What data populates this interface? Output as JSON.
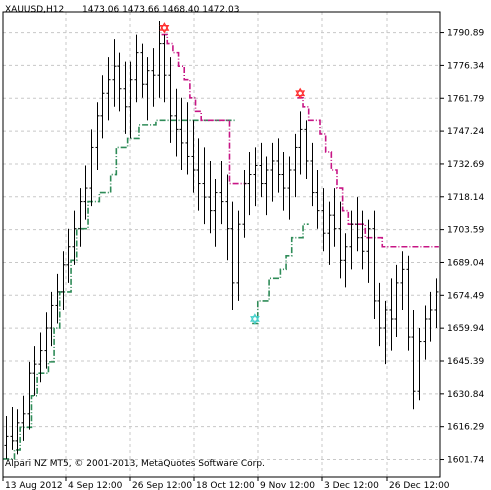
{
  "header": {
    "symbol_tf": "XAUUSD,H12",
    "ohlc": "1473.06 1473.66 1468.40 1472.03"
  },
  "footer": {
    "indicator_label": "Alpari NZ MT5, © 2001-2013, MetaQuotes Software Corp."
  },
  "colors": {
    "bars": "#000000",
    "support_line": "#2e8b57",
    "resistance_line": "#c71585",
    "support_signal": "#48d1cc",
    "resistance_signal": "#ff3030",
    "grid": "#c8c8c8",
    "frame": "#000000"
  },
  "chart_data": {
    "type": "line",
    "chart_kind": "ohlc-bars",
    "symbol": "XAUUSD",
    "timeframe": "H12",
    "grid": true,
    "ylim": [
      1594.0,
      1800.0
    ],
    "y_ticks": [
      "1790.89",
      "1776.34",
      "1761.79",
      "1747.24",
      "1732.69",
      "1718.14",
      "1703.59",
      "1689.04",
      "1674.49",
      "1659.94",
      "1645.39",
      "1630.84",
      "1616.29",
      "1601.74"
    ],
    "x_tick_labels": [
      "13 Aug 2012",
      "4 Sep 12:00",
      "26 Sep 12:00",
      "18 Oct 12:00",
      "9 Nov 12:00",
      "3 Dec 12:00",
      "26 Dec 12:00"
    ],
    "bars": [
      [
        1608,
        1621,
        1602,
        1612
      ],
      [
        1612,
        1625,
        1606,
        1610
      ],
      [
        1610,
        1624,
        1604,
        1618
      ],
      [
        1618,
        1630,
        1610,
        1622
      ],
      [
        1622,
        1645,
        1615,
        1640
      ],
      [
        1640,
        1652,
        1630,
        1644
      ],
      [
        1644,
        1658,
        1636,
        1650
      ],
      [
        1650,
        1667,
        1642,
        1660
      ],
      [
        1660,
        1676,
        1652,
        1670
      ],
      [
        1670,
        1684,
        1662,
        1676
      ],
      [
        1676,
        1694,
        1668,
        1688
      ],
      [
        1688,
        1704,
        1680,
        1696
      ],
      [
        1696,
        1712,
        1688,
        1704
      ],
      [
        1704,
        1722,
        1696,
        1716
      ],
      [
        1716,
        1732,
        1708,
        1722
      ],
      [
        1722,
        1748,
        1714,
        1740
      ],
      [
        1740,
        1760,
        1730,
        1754
      ],
      [
        1754,
        1772,
        1744,
        1764
      ],
      [
        1764,
        1780,
        1752,
        1770
      ],
      [
        1770,
        1788,
        1758,
        1776
      ],
      [
        1776,
        1782,
        1756,
        1766
      ],
      [
        1766,
        1778,
        1746,
        1758
      ],
      [
        1758,
        1778,
        1744,
        1770
      ],
      [
        1770,
        1790,
        1760,
        1782
      ],
      [
        1782,
        1786,
        1762,
        1768
      ],
      [
        1768,
        1780,
        1752,
        1774
      ],
      [
        1774,
        1784,
        1758,
        1772
      ],
      [
        1772,
        1796,
        1762,
        1786
      ],
      [
        1786,
        1790,
        1760,
        1772
      ],
      [
        1772,
        1780,
        1742,
        1754
      ],
      [
        1754,
        1766,
        1736,
        1748
      ],
      [
        1748,
        1762,
        1730,
        1742
      ],
      [
        1742,
        1760,
        1728,
        1736
      ],
      [
        1736,
        1752,
        1720,
        1730
      ],
      [
        1730,
        1744,
        1712,
        1724
      ],
      [
        1724,
        1740,
        1706,
        1718
      ],
      [
        1718,
        1734,
        1702,
        1712
      ],
      [
        1712,
        1726,
        1696,
        1720
      ],
      [
        1720,
        1734,
        1706,
        1716
      ],
      [
        1716,
        1728,
        1690,
        1704
      ],
      [
        1704,
        1716,
        1668,
        1680
      ],
      [
        1680,
        1712,
        1672,
        1706
      ],
      [
        1706,
        1730,
        1700,
        1724
      ],
      [
        1724,
        1738,
        1710,
        1728
      ],
      [
        1728,
        1740,
        1714,
        1732
      ],
      [
        1732,
        1742,
        1718,
        1724
      ],
      [
        1724,
        1736,
        1710,
        1730
      ],
      [
        1730,
        1742,
        1716,
        1734
      ],
      [
        1734,
        1744,
        1720,
        1728
      ],
      [
        1728,
        1738,
        1712,
        1722
      ],
      [
        1722,
        1736,
        1708,
        1730
      ],
      [
        1730,
        1746,
        1718,
        1740
      ],
      [
        1740,
        1756,
        1728,
        1748
      ],
      [
        1748,
        1752,
        1726,
        1734
      ],
      [
        1734,
        1742,
        1714,
        1720
      ],
      [
        1720,
        1730,
        1704,
        1712
      ],
      [
        1712,
        1722,
        1694,
        1702
      ],
      [
        1702,
        1716,
        1688,
        1710
      ],
      [
        1710,
        1722,
        1696,
        1704
      ],
      [
        1704,
        1716,
        1682,
        1690
      ],
      [
        1690,
        1702,
        1678,
        1696
      ],
      [
        1696,
        1712,
        1686,
        1706
      ],
      [
        1706,
        1718,
        1694,
        1700
      ],
      [
        1700,
        1712,
        1686,
        1694
      ],
      [
        1694,
        1708,
        1680,
        1704
      ],
      [
        1704,
        1712,
        1664,
        1672
      ],
      [
        1672,
        1680,
        1652,
        1660
      ],
      [
        1660,
        1672,
        1644,
        1668
      ],
      [
        1668,
        1682,
        1650,
        1664
      ],
      [
        1664,
        1688,
        1656,
        1680
      ],
      [
        1680,
        1694,
        1668,
        1686
      ],
      [
        1686,
        1692,
        1650,
        1656
      ],
      [
        1656,
        1668,
        1624,
        1632
      ],
      [
        1632,
        1660,
        1628,
        1654
      ],
      [
        1654,
        1670,
        1646,
        1664
      ],
      [
        1664,
        1676,
        1654,
        1668
      ],
      [
        1668,
        1682,
        1660,
        1676
      ]
    ],
    "support_line": [
      1602,
      1602,
      1606,
      1616,
      1616,
      1630,
      1640,
      1640,
      1645,
      1660,
      1676,
      1676,
      1690,
      1704,
      1704,
      1716,
      1716,
      1720,
      1720,
      1728,
      1740,
      1740,
      1744,
      1744,
      1750,
      1750,
      1750,
      1752,
      1752,
      1752,
      1752,
      1752,
      1752,
      1752,
      1752,
      1752,
      1752,
      1752,
      1752,
      1752,
      1752,
      null,
      null,
      null,
      1662,
      1672,
      1672,
      1682,
      1682,
      1686,
      1692,
      1700,
      1700,
      1706,
      null,
      null,
      null,
      null,
      null,
      null,
      null,
      null,
      null,
      null,
      null,
      null,
      null,
      null,
      null,
      null,
      null,
      null,
      null,
      null,
      null,
      null,
      null
    ],
    "resistance_line": [
      null,
      null,
      null,
      null,
      null,
      null,
      null,
      null,
      null,
      null,
      null,
      null,
      null,
      null,
      null,
      null,
      null,
      null,
      null,
      null,
      null,
      null,
      null,
      null,
      null,
      null,
      null,
      null,
      1790,
      1786,
      1782,
      1776,
      1770,
      1762,
      1756,
      1752,
      1752,
      1752,
      1752,
      1752,
      1724,
      1724,
      1724,
      null,
      null,
      null,
      null,
      null,
      null,
      null,
      null,
      null,
      1762,
      1758,
      1752,
      1752,
      1746,
      1738,
      1730,
      1722,
      1712,
      1706,
      1706,
      1706,
      1700,
      1700,
      1700,
      1696,
      1696,
      1696,
      1696,
      1696,
      1696,
      1696,
      1696,
      1696,
      1696
    ],
    "support_signals": [
      {
        "bar": 44,
        "value": 1664
      }
    ],
    "resistance_signals": [
      {
        "bar": 28,
        "value": 1793
      },
      {
        "bar": 52,
        "value": 1764
      }
    ]
  }
}
